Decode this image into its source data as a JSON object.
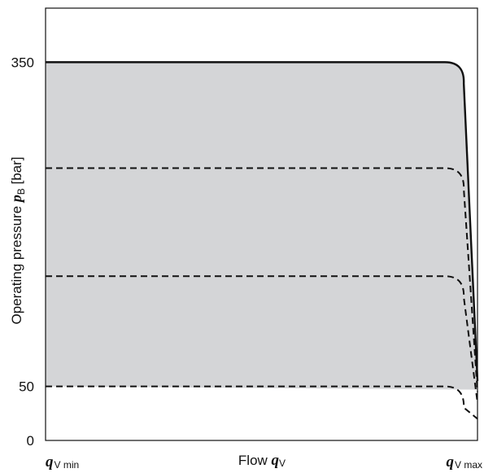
{
  "chart_data": {
    "type": "area",
    "title": "",
    "ylabel": {
      "prefix": "Operating pressure ",
      "symbol": "p",
      "subscript": "B",
      "unit": " [bar]"
    },
    "xlabel": {
      "prefix": "Flow ",
      "symbol": "q",
      "subscript": "V"
    },
    "x_tick_labels": [
      {
        "symbol": "q",
        "subscript": "V min"
      },
      {
        "symbol": "q",
        "subscript": "V max"
      }
    ],
    "y_ticks": [
      {
        "value": 350,
        "label": "350"
      },
      {
        "value": 50,
        "label": "50"
      },
      {
        "value": 0,
        "label": "0"
      }
    ],
    "xlim": [
      0,
      1
    ],
    "ylim": [
      0,
      400
    ],
    "grid": false,
    "shaded_region_color": "#d4d5d7",
    "series": [
      {
        "style": "solid",
        "pressure": 350,
        "knee_x": 0.94,
        "end_x": 1.0,
        "end_y": 55
      },
      {
        "style": "dashed",
        "pressure": 252,
        "knee_x": 0.94,
        "end_x": 1.0,
        "end_y": 45
      },
      {
        "style": "dashed",
        "pressure": 152,
        "knee_x": 0.94,
        "end_x": 1.0,
        "end_y": 35
      },
      {
        "style": "dashed",
        "pressure": 50,
        "knee_x": 0.94,
        "end_x": 1.0,
        "end_y": 20
      }
    ]
  }
}
